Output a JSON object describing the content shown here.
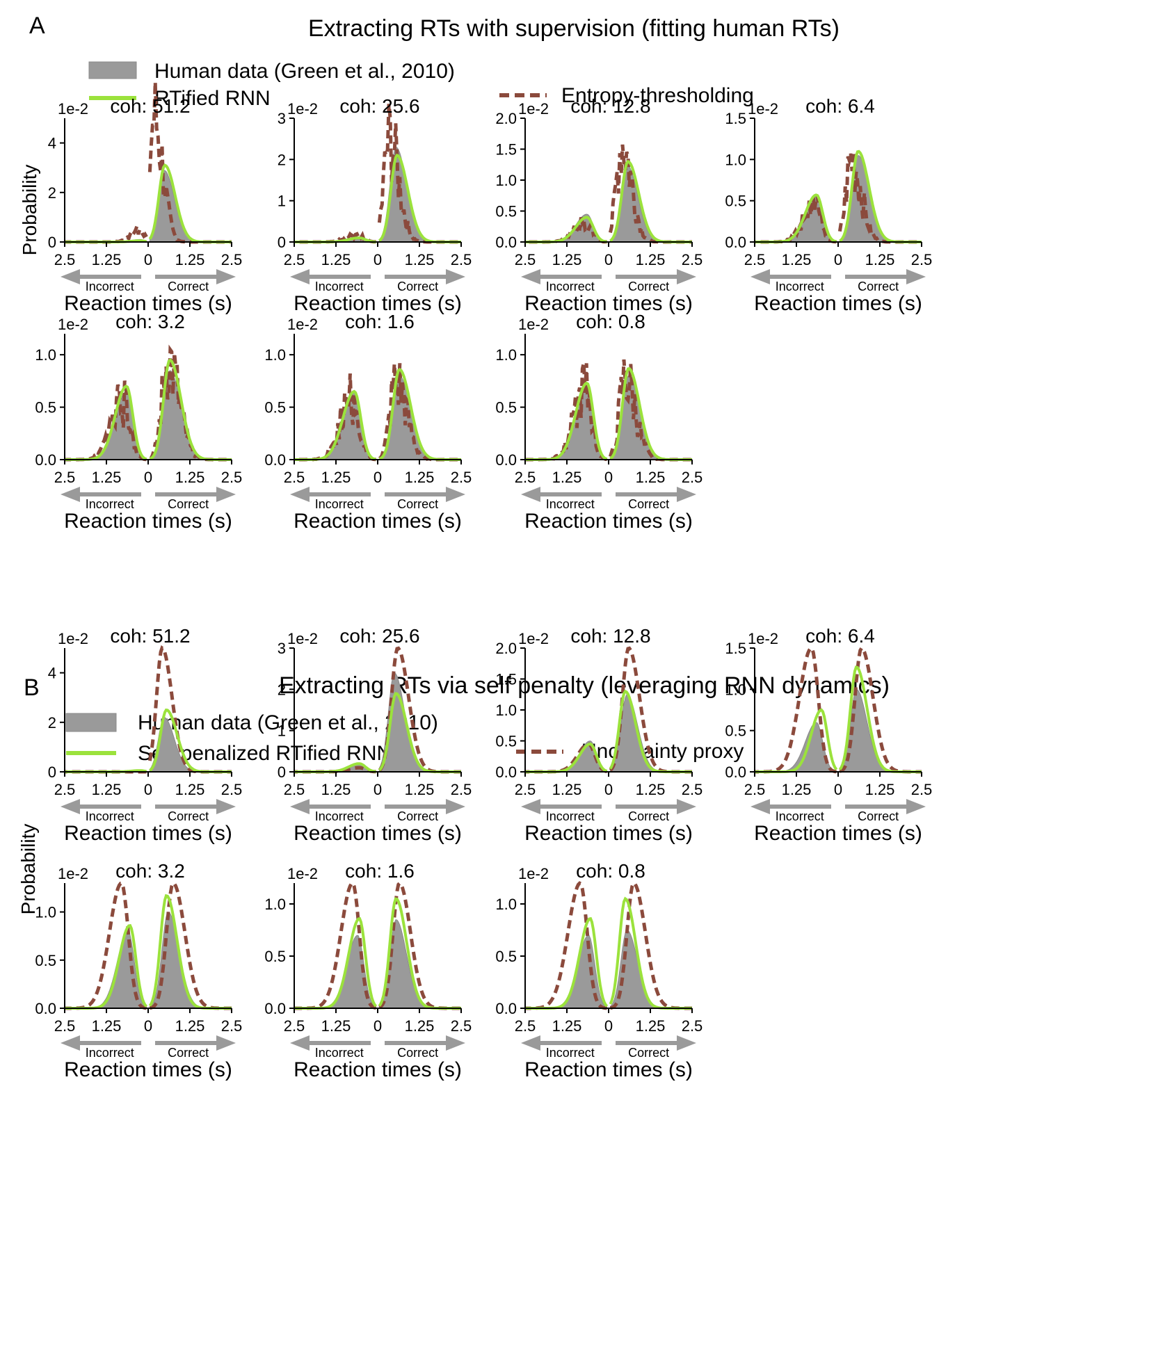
{
  "colors": {
    "human": "#9a9a9a",
    "human_edge": "#8a8a8a",
    "rnn": "#9be23c",
    "proxy": "#8b4a3c",
    "arrow": "#9a9a9a",
    "text": "#000000"
  },
  "chart_data": [
    {
      "panel": "A",
      "type": "area",
      "title": "Extracting RTs with supervision (fitting human RTs)",
      "legend": [
        {
          "key": "human",
          "label": "Human data (Green et al., 2010)"
        },
        {
          "key": "rnn",
          "label": "RTified RNN"
        },
        {
          "key": "proxy",
          "label": "Entropy-thresholding"
        }
      ],
      "ylabel": "Probability",
      "xlabel": "Reaction times (s)",
      "x_tick_labels": [
        "2.5",
        "1.25",
        "0",
        "1.25",
        "2.5"
      ],
      "direction_labels": {
        "left": "Incorrect",
        "right": "Correct"
      },
      "scale_label": "1e-2",
      "subplots": [
        {
          "coh": "coh: 51.2",
          "ymax": 5,
          "yticks": [
            0,
            2,
            4
          ],
          "human_inc": {
            "c": 0.25,
            "h": 0.1
          },
          "human_cor": {
            "c": 0.48,
            "h": 2.9
          },
          "rnn_inc": {
            "c": 0.25,
            "h": 0.05
          },
          "rnn_cor": {
            "c": 0.5,
            "h": 3.1
          },
          "proxy_inc": {
            "c": 0.25,
            "h": 0.5
          },
          "proxy_cor": {
            "c": 0.18,
            "h": 5.0
          }
        },
        {
          "coh": "coh: 25.6",
          "ymax": 3,
          "yticks": [
            0,
            1,
            2,
            3
          ],
          "human_inc": {
            "c": 0.55,
            "h": 0.1
          },
          "human_cor": {
            "c": 0.55,
            "h": 2.3
          },
          "rnn_inc": {
            "c": 0.55,
            "h": 0.1
          },
          "rnn_cor": {
            "c": 0.58,
            "h": 2.1
          },
          "proxy_inc": {
            "c": 0.6,
            "h": 0.2
          },
          "proxy_cor": {
            "c": 0.35,
            "h": 2.5
          }
        },
        {
          "coh": "coh: 12.8",
          "ymax": 2.0,
          "yticks": [
            0.0,
            0.5,
            1.0,
            1.5,
            2.0
          ],
          "human_inc": {
            "c": 0.65,
            "h": 0.45
          },
          "human_cor": {
            "c": 0.55,
            "h": 1.25
          },
          "rnn_inc": {
            "c": 0.65,
            "h": 0.4
          },
          "rnn_cor": {
            "c": 0.58,
            "h": 1.3
          },
          "proxy_inc": {
            "c": 0.7,
            "h": 0.3
          },
          "proxy_cor": {
            "c": 0.4,
            "h": 1.6
          }
        },
        {
          "coh": "coh: 6.4",
          "ymax": 1.5,
          "yticks": [
            0.0,
            0.5,
            1.0,
            1.5
          ],
          "human_inc": {
            "c": 0.65,
            "h": 0.55
          },
          "human_cor": {
            "c": 0.6,
            "h": 1.05
          },
          "rnn_inc": {
            "c": 0.65,
            "h": 0.57
          },
          "rnn_cor": {
            "c": 0.6,
            "h": 1.1
          },
          "proxy_inc": {
            "c": 0.7,
            "h": 0.45
          },
          "proxy_cor": {
            "c": 0.4,
            "h": 1.0
          }
        },
        {
          "coh": "coh: 3.2",
          "ymax": 1.2,
          "yticks": [
            0.0,
            0.5,
            1.0
          ],
          "human_inc": {
            "c": 0.65,
            "h": 0.65
          },
          "human_cor": {
            "c": 0.65,
            "h": 0.85
          },
          "rnn_inc": {
            "c": 0.65,
            "h": 0.7
          },
          "rnn_cor": {
            "c": 0.65,
            "h": 0.95
          },
          "proxy_inc": {
            "c": 0.75,
            "h": 0.55
          },
          "proxy_cor": {
            "c": 0.6,
            "h": 0.95
          }
        },
        {
          "coh": "coh: 1.6",
          "ymax": 1.2,
          "yticks": [
            0.0,
            0.5,
            1.0
          ],
          "human_inc": {
            "c": 0.7,
            "h": 0.65
          },
          "human_cor": {
            "c": 0.65,
            "h": 0.8
          },
          "rnn_inc": {
            "c": 0.7,
            "h": 0.65
          },
          "rnn_cor": {
            "c": 0.65,
            "h": 0.86
          },
          "proxy_inc": {
            "c": 0.75,
            "h": 0.6
          },
          "proxy_cor": {
            "c": 0.55,
            "h": 0.75
          }
        },
        {
          "coh": "coh: 0.8",
          "ymax": 1.2,
          "yticks": [
            0.0,
            0.5,
            1.0
          ],
          "human_inc": {
            "c": 0.65,
            "h": 0.7
          },
          "human_cor": {
            "c": 0.6,
            "h": 0.8
          },
          "rnn_inc": {
            "c": 0.65,
            "h": 0.73
          },
          "rnn_cor": {
            "c": 0.6,
            "h": 0.87
          },
          "proxy_inc": {
            "c": 0.7,
            "h": 0.65
          },
          "proxy_cor": {
            "c": 0.5,
            "h": 0.78
          }
        }
      ]
    },
    {
      "panel": "B",
      "type": "area",
      "title": "Extracting RTs via self penalty (leveraging RNN dynamics)",
      "legend": [
        {
          "key": "human",
          "label": "Human data (Green et al., 2010)"
        },
        {
          "key": "rnn",
          "label": "Self-penalized RTified RNN"
        },
        {
          "key": "proxy",
          "label": "Uncertainty proxy"
        }
      ],
      "ylabel": "Probability",
      "xlabel": "Reaction times (s)",
      "x_tick_labels": [
        "2.5",
        "1.25",
        "0",
        "1.25",
        "2.5"
      ],
      "direction_labels": {
        "left": "Incorrect",
        "right": "Correct"
      },
      "scale_label": "1e-2",
      "subplots": [
        {
          "coh": "coh: 51.2",
          "ymax": 5,
          "yticks": [
            0,
            2,
            4
          ],
          "human_inc": {
            "c": 0.25,
            "h": 0.05
          },
          "human_cor": {
            "c": 0.48,
            "h": 2.2
          },
          "rnn_inc": {
            "c": 0.25,
            "h": 0.05
          },
          "rnn_cor": {
            "c": 0.55,
            "h": 2.5
          },
          "proxy_inc": {
            "c": 0.25,
            "h": 0.0
          },
          "proxy_cor": {
            "c": 0.42,
            "h": 5.0
          }
        },
        {
          "coh": "coh: 25.6",
          "ymax": 3,
          "yticks": [
            0,
            1,
            2,
            3
          ],
          "human_inc": {
            "c": 0.55,
            "h": 0.2
          },
          "human_cor": {
            "c": 0.5,
            "h": 2.4
          },
          "rnn_inc": {
            "c": 0.55,
            "h": 0.2
          },
          "rnn_cor": {
            "c": 0.55,
            "h": 1.9
          },
          "proxy_inc": {
            "c": 0.55,
            "h": 0.1
          },
          "proxy_cor": {
            "c": 0.6,
            "h": 3.0
          }
        },
        {
          "coh": "coh: 12.8",
          "ymax": 2.0,
          "yticks": [
            0.0,
            0.5,
            1.0,
            1.5,
            2.0
          ],
          "human_inc": {
            "c": 0.55,
            "h": 0.5
          },
          "human_cor": {
            "c": 0.55,
            "h": 1.25
          },
          "rnn_inc": {
            "c": 0.55,
            "h": 0.45
          },
          "rnn_cor": {
            "c": 0.5,
            "h": 1.3
          },
          "proxy_inc": {
            "c": 0.6,
            "h": 0.45
          },
          "proxy_cor": {
            "c": 0.6,
            "h": 2.0
          }
        },
        {
          "coh": "coh: 6.4",
          "ymax": 1.5,
          "yticks": [
            0.0,
            0.5,
            1.0,
            1.5
          ],
          "human_inc": {
            "c": 0.65,
            "h": 0.6
          },
          "human_cor": {
            "c": 0.55,
            "h": 1.0
          },
          "rnn_inc": {
            "c": 0.5,
            "h": 0.75
          },
          "rnn_cor": {
            "c": 0.55,
            "h": 1.27
          },
          "proxy_inc": {
            "c": 0.8,
            "h": 1.5
          },
          "proxy_cor": {
            "c": 0.7,
            "h": 1.5
          }
        },
        {
          "coh": "coh: 3.2",
          "ymax": 1.3,
          "yticks": [
            0.0,
            0.5,
            1.0
          ],
          "human_inc": {
            "c": 0.6,
            "h": 0.8
          },
          "human_cor": {
            "c": 0.6,
            "h": 1.0
          },
          "rnn_inc": {
            "c": 0.55,
            "h": 0.86
          },
          "rnn_cor": {
            "c": 0.55,
            "h": 1.17
          },
          "proxy_inc": {
            "c": 0.8,
            "h": 1.3
          },
          "proxy_cor": {
            "c": 0.75,
            "h": 1.3
          }
        },
        {
          "coh": "coh: 1.6",
          "ymax": 1.2,
          "yticks": [
            0.0,
            0.5,
            1.0
          ],
          "human_inc": {
            "c": 0.6,
            "h": 0.7
          },
          "human_cor": {
            "c": 0.55,
            "h": 0.85
          },
          "rnn_inc": {
            "c": 0.55,
            "h": 0.86
          },
          "rnn_cor": {
            "c": 0.55,
            "h": 1.05
          },
          "proxy_inc": {
            "c": 0.75,
            "h": 1.2
          },
          "proxy_cor": {
            "c": 0.65,
            "h": 1.2
          }
        },
        {
          "coh": "coh: 0.8",
          "ymax": 1.2,
          "yticks": [
            0.0,
            0.5,
            1.0
          ],
          "human_inc": {
            "c": 0.6,
            "h": 0.7
          },
          "human_cor": {
            "c": 0.55,
            "h": 0.75
          },
          "rnn_inc": {
            "c": 0.55,
            "h": 0.86
          },
          "rnn_cor": {
            "c": 0.5,
            "h": 1.05
          },
          "proxy_inc": {
            "c": 0.85,
            "h": 1.2
          },
          "proxy_cor": {
            "c": 0.75,
            "h": 1.2
          }
        }
      ]
    }
  ]
}
